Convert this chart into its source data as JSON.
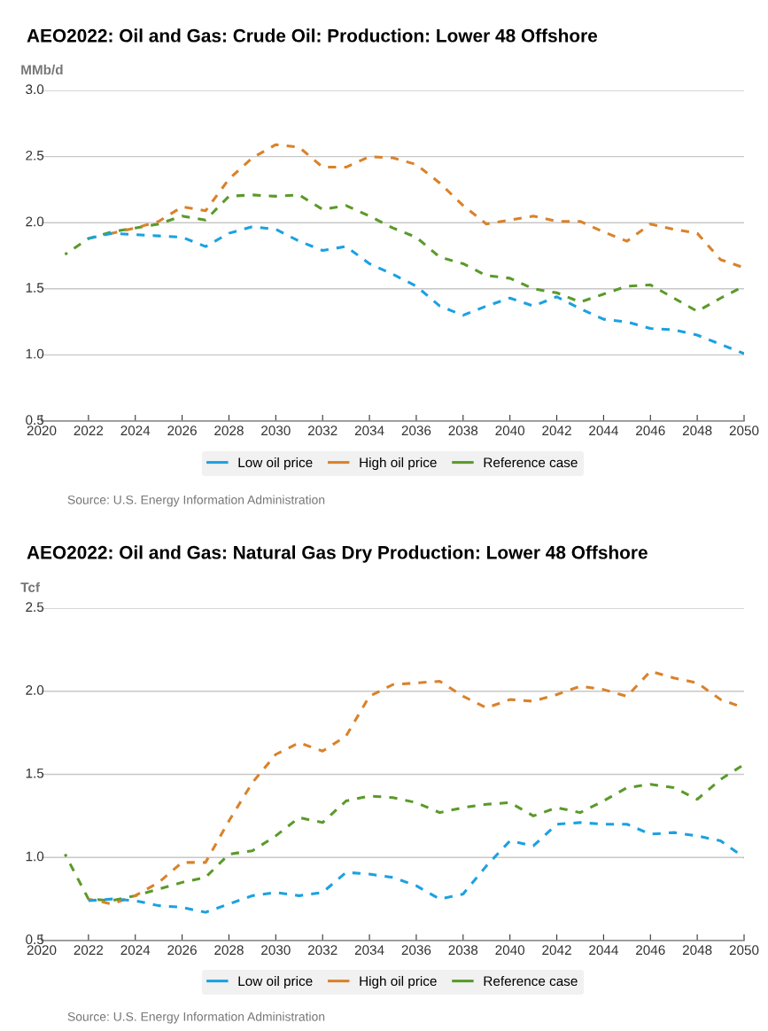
{
  "chart_data": [
    {
      "type": "line",
      "title": "AEO2022: Oil and Gas: Crude Oil: Production: Lower 48 Offshore",
      "ylabel": "MMb/d",
      "x": [
        2021,
        2022,
        2023,
        2024,
        2025,
        2026,
        2027,
        2028,
        2029,
        2030,
        2031,
        2032,
        2033,
        2034,
        2035,
        2036,
        2037,
        2038,
        2039,
        2040,
        2041,
        2042,
        2043,
        2044,
        2045,
        2046,
        2047,
        2048,
        2049,
        2050
      ],
      "series": [
        {
          "name": "Low oil price",
          "color": "#1ba1e2",
          "values": [
            null,
            1.88,
            1.92,
            1.91,
            1.9,
            1.89,
            1.82,
            1.92,
            1.97,
            1.95,
            1.86,
            1.79,
            1.82,
            1.69,
            1.61,
            1.52,
            1.37,
            1.3,
            1.37,
            1.43,
            1.37,
            1.44,
            1.35,
            1.27,
            1.25,
            1.2,
            1.19,
            1.15,
            1.08,
            1.01
          ]
        },
        {
          "name": "High oil price",
          "color": "#d9822b",
          "values": [
            null,
            null,
            1.92,
            1.96,
            2.01,
            2.12,
            2.09,
            2.33,
            2.49,
            2.59,
            2.57,
            2.42,
            2.42,
            2.5,
            2.49,
            2.44,
            2.3,
            2.13,
            1.99,
            2.02,
            2.05,
            2.01,
            2.01,
            1.93,
            1.86,
            1.99,
            1.95,
            1.92,
            1.72,
            1.66
          ]
        },
        {
          "name": "Reference case",
          "color": "#5a9a2a",
          "values": [
            1.76,
            1.88,
            1.93,
            1.96,
            1.99,
            2.05,
            2.02,
            2.2,
            2.21,
            2.2,
            2.21,
            2.1,
            2.13,
            2.05,
            1.96,
            1.89,
            1.74,
            1.69,
            1.6,
            1.58,
            1.5,
            1.47,
            1.4,
            1.46,
            1.52,
            1.53,
            1.43,
            1.33,
            1.43,
            1.52
          ]
        }
      ],
      "xlim": [
        2020,
        2050
      ],
      "xticks": [
        2020,
        2022,
        2024,
        2026,
        2028,
        2030,
        2032,
        2034,
        2036,
        2038,
        2040,
        2042,
        2044,
        2046,
        2048,
        2050
      ],
      "ylim": [
        0.5,
        3.0
      ],
      "yticks": [
        {
          "value": 0.5,
          "label": "0.5"
        },
        {
          "value": 1.0,
          "label": "1.0"
        },
        {
          "value": 1.5,
          "label": "1.5"
        },
        {
          "value": 2.0,
          "label": "2.0"
        },
        {
          "value": 2.5,
          "label": "2.5"
        },
        {
          "value": 3.0,
          "label": "3.0"
        }
      ],
      "grid": "y",
      "legend": "bottom",
      "line_style": "dashed",
      "marker": "none",
      "annotations": [
        "Source: U.S. Energy Information Administration"
      ]
    },
    {
      "type": "line",
      "title": "AEO2022: Oil and Gas: Natural Gas Dry Production: Lower 48 Offshore",
      "ylabel": "Tcf",
      "x": [
        2021,
        2022,
        2023,
        2024,
        2025,
        2026,
        2027,
        2028,
        2029,
        2030,
        2031,
        2032,
        2033,
        2034,
        2035,
        2036,
        2037,
        2038,
        2039,
        2040,
        2041,
        2042,
        2043,
        2044,
        2045,
        2046,
        2047,
        2048,
        2049,
        2050
      ],
      "series": [
        {
          "name": "Low oil price",
          "color": "#1ba1e2",
          "values": [
            null,
            0.74,
            0.75,
            0.74,
            0.71,
            0.7,
            0.67,
            0.72,
            0.77,
            0.79,
            0.77,
            0.79,
            0.91,
            0.9,
            0.88,
            0.83,
            0.75,
            0.78,
            0.95,
            1.1,
            1.07,
            1.2,
            1.21,
            1.2,
            1.2,
            1.14,
            1.15,
            1.13,
            1.1,
            1.0
          ]
        },
        {
          "name": "High oil price",
          "color": "#d9822b",
          "values": [
            null,
            0.75,
            0.72,
            0.77,
            0.85,
            0.97,
            0.97,
            1.22,
            1.45,
            1.62,
            1.69,
            1.64,
            1.73,
            1.97,
            2.04,
            2.05,
            2.06,
            1.97,
            1.9,
            1.95,
            1.94,
            1.98,
            2.03,
            2.01,
            1.97,
            2.12,
            2.08,
            2.05,
            1.95,
            1.9
          ]
        },
        {
          "name": "Reference case",
          "color": "#5a9a2a",
          "values": [
            1.02,
            0.75,
            0.74,
            0.77,
            0.81,
            0.85,
            0.88,
            1.02,
            1.04,
            1.13,
            1.24,
            1.21,
            1.34,
            1.37,
            1.36,
            1.33,
            1.27,
            1.3,
            1.32,
            1.33,
            1.25,
            1.3,
            1.27,
            1.34,
            1.42,
            1.44,
            1.42,
            1.35,
            1.47,
            1.56
          ]
        }
      ],
      "xlim": [
        2020,
        2050
      ],
      "xticks": [
        2020,
        2022,
        2024,
        2026,
        2028,
        2030,
        2032,
        2034,
        2036,
        2038,
        2040,
        2042,
        2044,
        2046,
        2048,
        2050
      ],
      "ylim": [
        0.5,
        2.5
      ],
      "yticks": [
        {
          "value": 0.5,
          "label": "0.5"
        },
        {
          "value": 1.0,
          "label": "1.0"
        },
        {
          "value": 1.5,
          "label": "1.5"
        },
        {
          "value": 2.0,
          "label": "2.0"
        },
        {
          "value": 2.5,
          "label": "2.5"
        }
      ],
      "grid": "y",
      "legend": "bottom",
      "line_style": "dashed",
      "marker": "none",
      "annotations": [
        "Source: U.S. Energy Information Administration"
      ]
    }
  ]
}
